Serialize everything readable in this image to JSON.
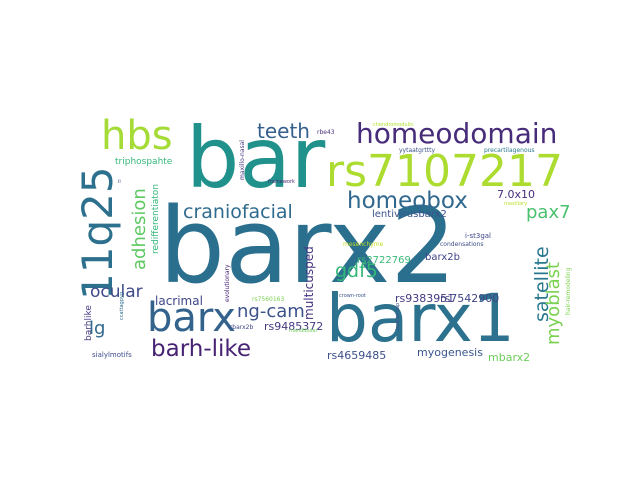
{
  "words": [
    {
      "text": "barx2",
      "color": "#2a6f8e",
      "vertical": false
    },
    {
      "text": "bar",
      "color": "#21918c",
      "vertical": false
    },
    {
      "text": "barx1",
      "color": "#2c728e",
      "vertical": false
    },
    {
      "text": "rs7107217",
      "color": "#addc30",
      "vertical": false
    },
    {
      "text": "11q25",
      "color": "#2d708e",
      "vertical": true
    },
    {
      "text": "hbs",
      "color": "#a5db36",
      "vertical": false
    },
    {
      "text": "homeodomain",
      "color": "#472c7a",
      "vertical": false
    },
    {
      "text": "barx",
      "color": "#33638d",
      "vertical": false
    },
    {
      "text": "homeobox",
      "color": "#31688e",
      "vertical": false
    },
    {
      "text": "barh-like",
      "color": "#482374",
      "vertical": false
    },
    {
      "text": "craniofacial",
      "color": "#2f6b8e",
      "vertical": false
    },
    {
      "text": "teeth",
      "color": "#355f8d",
      "vertical": false
    },
    {
      "text": "adhesion",
      "color": "#5ec962",
      "vertical": true
    },
    {
      "text": "ng-cam",
      "color": "#3b528b",
      "vertical": false
    },
    {
      "text": "ocular",
      "color": "#3e4a89",
      "vertical": false
    },
    {
      "text": "gdf5",
      "color": "#35b779",
      "vertical": false
    },
    {
      "text": "pax7",
      "color": "#4ac16d",
      "vertical": false
    },
    {
      "text": "satellite",
      "color": "#29788e",
      "vertical": true
    },
    {
      "text": "myoblast",
      "color": "#7ad151",
      "vertical": true
    },
    {
      "text": "lg",
      "color": "#31688e",
      "vertical": false
    },
    {
      "text": "lacrimal",
      "color": "#3f4788",
      "vertical": false
    },
    {
      "text": "multicusped",
      "color": "#46337e",
      "vertical": true
    },
    {
      "text": "rs9485372",
      "color": "#453882",
      "vertical": false
    },
    {
      "text": "rs9383951",
      "color": "#443983",
      "vertical": false
    },
    {
      "text": "rs7542900",
      "color": "#404688",
      "vertical": false
    },
    {
      "text": "rs4659485",
      "color": "#3c4f8a",
      "vertical": false
    },
    {
      "text": "myogenesis",
      "color": "#39568c",
      "vertical": false
    },
    {
      "text": "mbarx2",
      "color": "#6ccd5a",
      "vertical": false
    },
    {
      "text": "lentivirusbarx2",
      "color": "#3b528b",
      "vertical": false
    },
    {
      "text": "7.0x10",
      "color": "#472d7b",
      "vertical": false
    },
    {
      "text": "barx2b",
      "color": "#404588",
      "vertical": false
    },
    {
      "text": "rs2722769",
      "color": "#38b977",
      "vertical": false
    },
    {
      "text": "redifferentiaton",
      "color": "#32b67a",
      "vertical": true
    },
    {
      "text": "triphospahte",
      "color": "#35b779",
      "vertical": false
    },
    {
      "text": "barhlike",
      "color": "#433e85",
      "vertical": true
    },
    {
      "text": "sialylmotifs",
      "color": "#3e4c8a",
      "vertical": false
    },
    {
      "text": "i-st3gal",
      "color": "#3f4889",
      "vertical": false
    },
    {
      "text": "condensations",
      "color": "#3d4e8a",
      "vertical": false
    },
    {
      "text": "evolutionary",
      "color": "#482576",
      "vertical": true
    },
    {
      "text": "maxillo-nasal",
      "color": "#46337f",
      "vertical": true
    },
    {
      "text": "cbarx2b",
      "color": "#3f4889",
      "vertical": false
    },
    {
      "text": "ccattagpyg",
      "color": "#2e6e8e",
      "vertical": true
    },
    {
      "text": "framework",
      "color": "#481f71",
      "vertical": false
    },
    {
      "text": "rbe43",
      "color": "#472f7d",
      "vertical": false
    },
    {
      "text": "yytaatgrttty",
      "color": "#3b528b",
      "vertical": false
    },
    {
      "text": "precartilagenous",
      "color": "#2a788e",
      "vertical": false
    },
    {
      "text": "chondromodulin",
      "color": "#b5de2b",
      "vertical": false
    },
    {
      "text": "mesenchyme",
      "color": "#c2df23",
      "vertical": false
    },
    {
      "text": "rs7560163",
      "color": "#7ad151",
      "vertical": false
    },
    {
      "text": "crown-root",
      "color": "#3a548c",
      "vertical": false
    },
    {
      "text": "bud-to-cap",
      "color": "#3c508b",
      "vertical": true
    },
    {
      "text": "hair-remodeling",
      "color": "#7fd34e",
      "vertical": true
    },
    {
      "text": "mandibular",
      "color": "#6ccd5a",
      "vertical": false
    },
    {
      "text": "maxillary",
      "color": "#b8de29",
      "vertical": false
    },
    {
      "text": "ii",
      "color": "#3e4a89",
      "vertical": false
    }
  ]
}
